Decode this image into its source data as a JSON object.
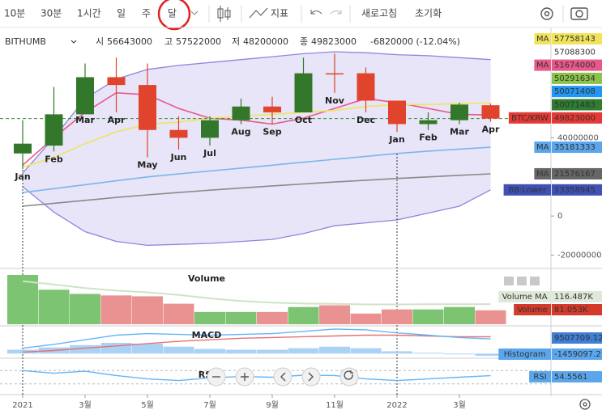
{
  "toolbar": {
    "intervals": [
      "10분",
      "30분",
      "1시간",
      "일",
      "주",
      "달"
    ],
    "indicators": "지표",
    "refresh": "새로고침",
    "reset": "초기화"
  },
  "header": {
    "exchange": "BITHUMB",
    "fields": [
      {
        "label": "시",
        "value": "56643000"
      },
      {
        "label": "고",
        "value": "57522000"
      },
      {
        "label": "저",
        "value": "48200000"
      },
      {
        "label": "종",
        "value": "49823000"
      }
    ],
    "change": "-6820000 (-12.04%)"
  },
  "chart_data": {
    "type": "candlestick",
    "categories": [
      "Jan",
      "Feb",
      "Mar",
      "Apr",
      "May",
      "Jun",
      "Jul",
      "Aug",
      "Sep",
      "Oct",
      "Nov",
      "Dec",
      "Jan",
      "Feb",
      "Mar",
      "Apr"
    ],
    "x_labels": [
      "2021",
      null,
      "3월",
      null,
      "5월",
      null,
      "7월",
      null,
      "9월",
      null,
      "11월",
      null,
      "2022",
      null,
      "3월",
      null
    ],
    "open": [
      32000000,
      36000000,
      52000000,
      71000000,
      67000000,
      44000000,
      40000000,
      49000000,
      56000000,
      53000000,
      73000000,
      73000000,
      59000000,
      47000000,
      49000000,
      56643000
    ],
    "high": [
      49000000,
      66000000,
      78000000,
      81000000,
      78000000,
      51000000,
      51000000,
      60000000,
      61000000,
      81000000,
      83000000,
      76000000,
      59000000,
      53000000,
      58000000,
      57522000
    ],
    "low": [
      24000000,
      33000000,
      53000000,
      53000000,
      30000000,
      34000000,
      36000000,
      47000000,
      47000000,
      53000000,
      63000000,
      53000000,
      43000000,
      44000000,
      47000000,
      48200000
    ],
    "close": [
      37000000,
      52000000,
      71000000,
      67000000,
      44000000,
      40000000,
      49000000,
      56000000,
      53000000,
      73000000,
      72500000,
      59000000,
      47000000,
      49000000,
      57000000,
      49823000
    ],
    "up_color": "#33782a",
    "down_color": "#e0442c",
    "ylim": [
      -26000000,
      96000000
    ],
    "yticks": [
      -20000000,
      0,
      40000000
    ],
    "band": {
      "color": "#9184e0",
      "fill": "rgba(170,160,225,0.28)",
      "upper": [
        22000000,
        40000000,
        60000000,
        70000000,
        75000000,
        77000000,
        78500000,
        80000000,
        81500000,
        83000000,
        84000000,
        83500000,
        82500000,
        82000000,
        81000000,
        80000000
      ],
      "lower": [
        15000000,
        2000000,
        -8000000,
        -13000000,
        -15000000,
        -14500000,
        -14000000,
        -13000000,
        -12000000,
        -9000000,
        -5000000,
        -3500000,
        -2000000,
        1500000,
        5000000,
        13358945
      ]
    },
    "overlays": [
      {
        "color": "#e8588a",
        "values": [
          26000000,
          40000000,
          53000000,
          63000000,
          62000000,
          55000000,
          50000000,
          49000000,
          47000000,
          50000000,
          55000000,
          60000000,
          58000000,
          55000000,
          52000000,
          51674000
        ]
      },
      {
        "color": "#f2e35c",
        "values": [
          25000000,
          30000000,
          37000000,
          43000000,
          47000000,
          48000000,
          50000000,
          51000000,
          52000000,
          53000000,
          54000000,
          56000000,
          57000000,
          57000000,
          57500000,
          57758143
        ]
      },
      {
        "color": "#7ab6ee",
        "values": [
          12000000,
          14000000,
          16000000,
          18000000,
          20000000,
          21500000,
          23000000,
          24500000,
          26000000,
          27500000,
          29000000,
          30500000,
          32000000,
          33200000,
          34200000,
          35181333
        ]
      },
      {
        "color": "#8a8a8a",
        "values": [
          5000000,
          6500000,
          8000000,
          9500000,
          10800000,
          12000000,
          13200000,
          14300000,
          15400000,
          16400000,
          17400000,
          18300000,
          19200000,
          20000000,
          20800000,
          21576167
        ]
      }
    ],
    "stacked_tags": [
      {
        "name": "MA",
        "value": 57758143,
        "color": "#f2e35c"
      },
      {
        "value": 57088300
      },
      {
        "name": "MA",
        "value": 51674000,
        "color": "#e8588a"
      },
      {
        "value": 50291634,
        "color": "#8bc34a"
      },
      {
        "value": 50071408,
        "color": "#2196f3"
      },
      {
        "value": 50071483,
        "color": "#2e7d32"
      },
      {
        "name": "BTC/KRW",
        "value": 49823000,
        "color": "#e53935"
      }
    ],
    "placed_tags": [
      {
        "name": "MA",
        "value": 35181333,
        "color": "#5aa6ec"
      },
      {
        "name": "MA",
        "value": 21576167,
        "color": "#666666"
      },
      {
        "name": "BB:Lower",
        "value": 13358945,
        "color": "#3f51b5"
      }
    ],
    "volume": {
      "title": "Volume",
      "ma_name": "Volume MA",
      "up_color": "#7cc472",
      "down_color": "#ea9292",
      "ma_color": "#cfe3c8",
      "ylim": [
        0,
        300
      ],
      "values": [
        286,
        200,
        176,
        167,
        162,
        119,
        71,
        71,
        71,
        100,
        110,
        62,
        86,
        86,
        100,
        81.053
      ],
      "value_label": "81.053K",
      "ma": [
        250,
        230,
        210,
        195,
        185,
        170,
        150,
        135,
        125,
        120,
        118,
        115,
        115,
        116,
        116,
        116.487
      ],
      "ma_label": "116.487K"
    },
    "macd": {
      "title": "MACD",
      "hist_name": "Histogram",
      "macd_color": "#64b5f6",
      "signal_color": "#e57373",
      "hist_color": "#a9d2f5",
      "ylim": [
        -2500000,
        16500000
      ],
      "macd": [
        3500000,
        6000000,
        9000000,
        12000000,
        13000000,
        12500000,
        12000000,
        12500000,
        13000000,
        14500000,
        16000000,
        15500000,
        13500000,
        12000000,
        10500000,
        9507709.12
      ],
      "signal": [
        1000000,
        2000000,
        3500000,
        5000000,
        6500000,
        8000000,
        9000000,
        10000000,
        10500000,
        11000000,
        11500000,
        12000000,
        12000000,
        11500000,
        11000000,
        10966806.32
      ],
      "histogram": [
        2500000,
        4000000,
        5500000,
        7000000,
        6500000,
        4500000,
        3000000,
        2500000,
        2500000,
        3500000,
        4500000,
        3500000,
        1500000,
        500000,
        -500000,
        -1459097.2
      ]
    },
    "rsi": {
      "title": "RSI",
      "color": "#64b5f6",
      "ylim": [
        0,
        100
      ],
      "guides": [
        30,
        70
      ],
      "values": [
        70,
        62,
        68,
        55,
        45,
        40,
        48,
        52,
        50,
        56,
        55,
        45,
        40,
        45,
        50,
        54.5561
      ]
    }
  }
}
